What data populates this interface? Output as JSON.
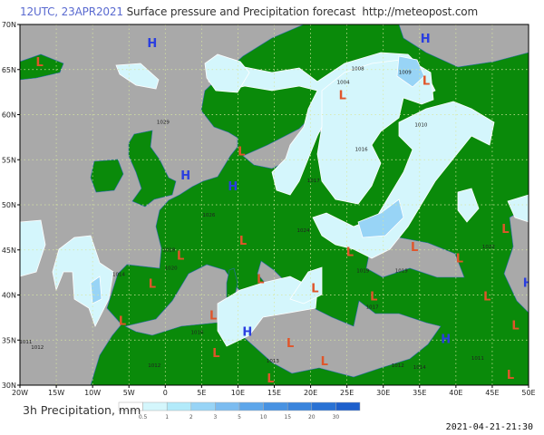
{
  "header": {
    "run": "12UTC, 23APR2021",
    "title": "Surface pressure and Precipitation forecast",
    "url": "http://meteopost.com"
  },
  "map": {
    "lon_range": [
      -20,
      50
    ],
    "lat_range": [
      30,
      70
    ],
    "lon_ticks": [
      {
        "v": -20,
        "label": "20W"
      },
      {
        "v": -15,
        "label": "15W"
      },
      {
        "v": -10,
        "label": "10W"
      },
      {
        "v": -5,
        "label": "5W"
      },
      {
        "v": 0,
        "label": "0"
      },
      {
        "v": 5,
        "label": "5E"
      },
      {
        "v": 10,
        "label": "10E"
      },
      {
        "v": 15,
        "label": "15E"
      },
      {
        "v": 20,
        "label": "20E"
      },
      {
        "v": 25,
        "label": "25E"
      },
      {
        "v": 30,
        "label": "30E"
      },
      {
        "v": 35,
        "label": "35E"
      },
      {
        "v": 40,
        "label": "40E"
      },
      {
        "v": 45,
        "label": "45E"
      },
      {
        "v": 50,
        "label": "50E"
      }
    ],
    "lat_ticks": [
      {
        "v": 70,
        "label": "70N"
      },
      {
        "v": 65,
        "label": "65N"
      },
      {
        "v": 60,
        "label": "60N"
      },
      {
        "v": 55,
        "label": "55N"
      },
      {
        "v": 50,
        "label": "50N"
      },
      {
        "v": 45,
        "label": "45N"
      },
      {
        "v": 40,
        "label": "40N"
      },
      {
        "v": 35,
        "label": "35N"
      },
      {
        "v": 30,
        "label": "30N"
      }
    ],
    "colors": {
      "sea": "#a9a9a9",
      "land": "#0a8a0a",
      "high": "#2a3ee0",
      "low": "#e0552a",
      "grid": "#d8e8a0"
    },
    "pressure_centers": [
      {
        "type": "H",
        "lon": -1.8,
        "lat": 68.0
      },
      {
        "type": "L",
        "lon": -17.3,
        "lat": 65.9
      },
      {
        "type": "H",
        "lon": 2.8,
        "lat": 53.3
      },
      {
        "type": "H",
        "lon": 9.3,
        "lat": 52.1
      },
      {
        "type": "L",
        "lon": 10.5,
        "lat": 56.0
      },
      {
        "type": "H",
        "lon": 35.8,
        "lat": 68.5
      },
      {
        "type": "L",
        "lon": 24.4,
        "lat": 62.2
      },
      {
        "type": "L",
        "lon": 35.9,
        "lat": 63.8
      },
      {
        "type": "L",
        "lon": 2.1,
        "lat": 44.4
      },
      {
        "type": "L",
        "lon": 10.7,
        "lat": 46.1
      },
      {
        "type": "L",
        "lon": 13.1,
        "lat": 41.8
      },
      {
        "type": "L",
        "lon": -1.8,
        "lat": 41.3
      },
      {
        "type": "L",
        "lon": -5.9,
        "lat": 37.2
      },
      {
        "type": "L",
        "lon": 6.6,
        "lat": 37.8
      },
      {
        "type": "H",
        "lon": 11.3,
        "lat": 36.0
      },
      {
        "type": "L",
        "lon": 7.0,
        "lat": 33.6
      },
      {
        "type": "L",
        "lon": 14.5,
        "lat": 30.8
      },
      {
        "type": "L",
        "lon": 17.2,
        "lat": 34.7
      },
      {
        "type": "L",
        "lon": 21.9,
        "lat": 32.7
      },
      {
        "type": "L",
        "lon": 20.6,
        "lat": 40.8
      },
      {
        "type": "L",
        "lon": 25.4,
        "lat": 44.8
      },
      {
        "type": "L",
        "lon": 34.3,
        "lat": 45.4
      },
      {
        "type": "L",
        "lon": 40.5,
        "lat": 44.1
      },
      {
        "type": "L",
        "lon": 28.7,
        "lat": 39.9
      },
      {
        "type": "L",
        "lon": 44.3,
        "lat": 39.9
      },
      {
        "type": "L",
        "lon": 46.8,
        "lat": 47.4
      },
      {
        "type": "L",
        "lon": 48.2,
        "lat": 36.7
      },
      {
        "type": "L",
        "lon": 47.5,
        "lat": 31.2
      },
      {
        "type": "H",
        "lon": 49.9,
        "lat": 41.4
      },
      {
        "type": "H",
        "lon": 38.6,
        "lat": 35.2
      }
    ],
    "isobar_labels": [
      {
        "text": "1029",
        "lon": -0.3,
        "lat": 59.0
      },
      {
        "text": "1011",
        "lon": -19.2,
        "lat": 34.6
      },
      {
        "text": "1012",
        "lon": -17.6,
        "lat": 34.0
      },
      {
        "text": "1004",
        "lon": 24.5,
        "lat": 63.4
      },
      {
        "text": "1008",
        "lon": 26.5,
        "lat": 64.9
      },
      {
        "text": "1009",
        "lon": 33.0,
        "lat": 64.5
      },
      {
        "text": "1010",
        "lon": 35.2,
        "lat": 58.7
      },
      {
        "text": "1016",
        "lon": 27.0,
        "lat": 56.0
      },
      {
        "text": "1017",
        "lon": 20.4,
        "lat": 52.5
      },
      {
        "text": "1019",
        "lon": 27.2,
        "lat": 42.5
      },
      {
        "text": "1019",
        "lon": 32.5,
        "lat": 42.5
      },
      {
        "text": "1014",
        "lon": -6.4,
        "lat": 42.1
      },
      {
        "text": "1016",
        "lon": 4.4,
        "lat": 35.7
      },
      {
        "text": "1013",
        "lon": 14.8,
        "lat": 32.5
      },
      {
        "text": "1012",
        "lon": 32.0,
        "lat": 32.0
      },
      {
        "text": "1018",
        "lon": 0.5,
        "lat": 44.8
      },
      {
        "text": "1020",
        "lon": 0.8,
        "lat": 42.8
      },
      {
        "text": "1026",
        "lon": 6.0,
        "lat": 48.7
      },
      {
        "text": "1024",
        "lon": 19.0,
        "lat": 47.0
      },
      {
        "text": "1017",
        "lon": 28.5,
        "lat": 38.5
      },
      {
        "text": "1014",
        "lon": 35.0,
        "lat": 31.8
      },
      {
        "text": "1011",
        "lon": 43.0,
        "lat": 32.8
      },
      {
        "text": "1022",
        "lon": 44.5,
        "lat": 45.2
      },
      {
        "text": "1012",
        "lon": -1.5,
        "lat": 32.0
      }
    ]
  },
  "legend": {
    "label": "3h Precipitation, mm",
    "levels": [
      "0.5",
      "1",
      "2",
      "3",
      "5",
      "10",
      "15",
      "20",
      "30"
    ],
    "colors": [
      "#ffffff",
      "#d4f6fc",
      "#b2eafa",
      "#98d4f6",
      "#7cbcf0",
      "#5ea6ea",
      "#4892e2",
      "#3a84dc",
      "#2a72d4",
      "#1e60cc"
    ]
  },
  "footer": {
    "timestamp": "2021-04-21-21:30"
  }
}
